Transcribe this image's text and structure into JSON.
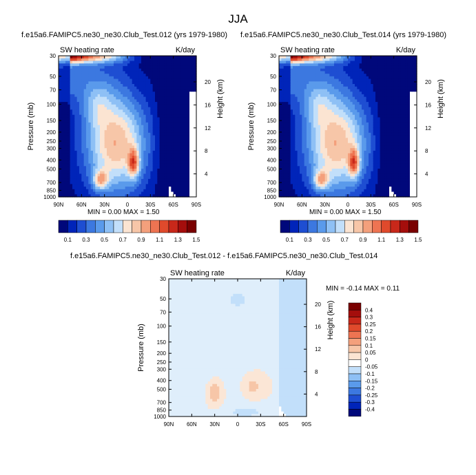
{
  "suptitle": "JJA",
  "palette": [
    "#00087b",
    "#0024b9",
    "#1e4ed2",
    "#3c78e0",
    "#5a9aeb",
    "#8ec0f5",
    "#c2dffa",
    "#fbe4d2",
    "#f7c6a8",
    "#f4a07c",
    "#ee7452",
    "#e04a2c",
    "#c8281a",
    "#a40e0c",
    "#7a0000"
  ],
  "diff_palette": [
    "#00087b",
    "#0024b9",
    "#1e4ed2",
    "#3c78e0",
    "#5a9aeb",
    "#8ec0f5",
    "#c2dffa",
    "#ffffff",
    "#fbe4d2",
    "#f7c6a8",
    "#f4a07c",
    "#ee7452",
    "#e04a2c",
    "#c8281a",
    "#a40e0c",
    "#7a0000"
  ],
  "panels": [
    {
      "title": "f.e15a6.FAMIPC5.ne30_ne30.Club_Test.012 (yrs 1979-1980)",
      "left_label": "SW heating rate",
      "right_label": "K/day",
      "minmax": "MIN =   0.00   MAX =    1.50",
      "ylabel": "Pressure (mb)",
      "y2label": "Height (km)"
    },
    {
      "title": "f.e15a6.FAMIPC5.ne30_ne30.Club_Test.014 (yrs 1979-1980)",
      "left_label": "SW heating rate",
      "right_label": "K/day",
      "minmax": "MIN =   0.00   MAX =    1.50",
      "ylabel": "Pressure (mb)",
      "y2label": "Height (km)"
    },
    {
      "title": "f.e15a6.FAMIPC5.ne30_ne30.Club_Test.012 - f.e15a6.FAMIPC5.ne30_ne30.Club_Test.014",
      "left_label": "SW heating rate",
      "right_label": "K/day",
      "minmax": "MIN =  -0.14   MAX =    0.11",
      "ylabel": "Pressure (mb)",
      "y2label": "Height (km)"
    }
  ],
  "chart_data": [
    {
      "type": "heatmap",
      "title": "f.e15a6.FAMIPC5.ne30_ne30.Club_Test.012 (yrs 1979-1980)",
      "variable": "SW heating rate",
      "units": "K/day",
      "xlabel": "",
      "ylabel": "Pressure (mb)",
      "y2label": "Height (km)",
      "x_ticks": [
        "90N",
        "60N",
        "30N",
        "0",
        "30S",
        "60S",
        "90S"
      ],
      "y_ticks": [
        30,
        50,
        70,
        100,
        150,
        200,
        250,
        300,
        400,
        500,
        700,
        850,
        1000
      ],
      "y_tick_labels": [
        "30",
        "50",
        "70",
        "100",
        "150",
        "200",
        "250",
        "300",
        "400",
        "500",
        "700",
        "850",
        "1000"
      ],
      "y2_ticks": [
        20,
        16,
        12,
        8,
        4
      ],
      "y_scale": "log",
      "xlim": [
        90,
        -90
      ],
      "ylim": [
        1000,
        30
      ],
      "colorbar_levels": [
        "0.1",
        "0.3",
        "0.5",
        "0.7",
        "0.9",
        "1.1",
        "1.3",
        "1.5"
      ],
      "min": 0.0,
      "max": 1.5
    },
    {
      "type": "heatmap",
      "title": "f.e15a6.FAMIPC5.ne30_ne30.Club_Test.014 (yrs 1979-1980)",
      "variable": "SW heating rate",
      "units": "K/day",
      "xlabel": "",
      "ylabel": "Pressure (mb)",
      "y2label": "Height (km)",
      "x_ticks": [
        "90N",
        "60N",
        "30N",
        "0",
        "30S",
        "60S",
        "90S"
      ],
      "y_ticks": [
        30,
        50,
        70,
        100,
        150,
        200,
        250,
        300,
        400,
        500,
        700,
        850,
        1000
      ],
      "y_tick_labels": [
        "30",
        "50",
        "70",
        "100",
        "150",
        "200",
        "250",
        "300",
        "400",
        "500",
        "700",
        "850",
        "1000"
      ],
      "y2_ticks": [
        20,
        16,
        12,
        8,
        4
      ],
      "y_scale": "log",
      "xlim": [
        90,
        -90
      ],
      "ylim": [
        1000,
        30
      ],
      "colorbar_levels": [
        "0.1",
        "0.3",
        "0.5",
        "0.7",
        "0.9",
        "1.1",
        "1.3",
        "1.5"
      ],
      "min": 0.0,
      "max": 1.5
    },
    {
      "type": "heatmap",
      "title": "f.e15a6.FAMIPC5.ne30_ne30.Club_Test.012 - f.e15a6.FAMIPC5.ne30_ne30.Club_Test.014",
      "variable": "SW heating rate",
      "units": "K/day",
      "xlabel": "",
      "ylabel": "Pressure (mb)",
      "y2label": "Height (km)",
      "x_ticks": [
        "90N",
        "60N",
        "30N",
        "0",
        "30S",
        "60S",
        "90S"
      ],
      "y_ticks": [
        30,
        50,
        70,
        100,
        150,
        200,
        250,
        300,
        400,
        500,
        700,
        850,
        1000
      ],
      "y_tick_labels": [
        "30",
        "50",
        "70",
        "100",
        "150",
        "200",
        "250",
        "300",
        "400",
        "500",
        "700",
        "850",
        "1000"
      ],
      "y2_ticks": [
        20,
        16,
        12,
        8,
        4
      ],
      "y_scale": "log",
      "xlim": [
        90,
        -90
      ],
      "ylim": [
        1000,
        30
      ],
      "colorbar_levels": [
        "0.4",
        "0.3",
        "0.25",
        "0.2",
        "0.15",
        "0.1",
        "0.05",
        "0",
        "-0.05",
        "-0.1",
        "-0.15",
        "-0.2",
        "-0.25",
        "-0.3",
        "-0.4"
      ],
      "min": -0.14,
      "max": 0.11
    }
  ]
}
